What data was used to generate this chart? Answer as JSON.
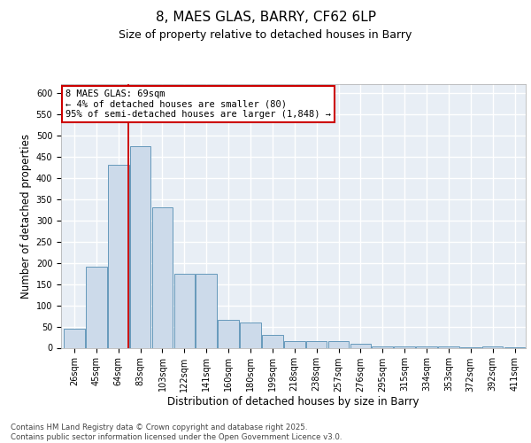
{
  "title_line1": "8, MAES GLAS, BARRY, CF62 6LP",
  "title_line2": "Size of property relative to detached houses in Barry",
  "xlabel": "Distribution of detached houses by size in Barry",
  "ylabel": "Number of detached properties",
  "categories": [
    "26sqm",
    "45sqm",
    "64sqm",
    "83sqm",
    "103sqm",
    "122sqm",
    "141sqm",
    "160sqm",
    "180sqm",
    "199sqm",
    "218sqm",
    "238sqm",
    "257sqm",
    "276sqm",
    "295sqm",
    "315sqm",
    "334sqm",
    "353sqm",
    "372sqm",
    "392sqm",
    "411sqm"
  ],
  "values": [
    45,
    190,
    430,
    475,
    330,
    175,
    175,
    65,
    60,
    30,
    15,
    15,
    15,
    10,
    3,
    3,
    3,
    3,
    2,
    3,
    2
  ],
  "bar_color": "#ccdaea",
  "bar_edge_color": "#6699bb",
  "vline_x": 2.45,
  "vline_color": "#cc0000",
  "annotation_line1": "8 MAES GLAS: 69sqm",
  "annotation_line2": "← 4% of detached houses are smaller (80)",
  "annotation_line3": "95% of semi-detached houses are larger (1,848) →",
  "annotation_box_edge_color": "#cc0000",
  "ylim_max": 620,
  "yticks": [
    0,
    50,
    100,
    150,
    200,
    250,
    300,
    350,
    400,
    450,
    500,
    550,
    600
  ],
  "background_color": "#e8eef5",
  "grid_color": "#ffffff",
  "footer_line1": "Contains HM Land Registry data © Crown copyright and database right 2025.",
  "footer_line2": "Contains public sector information licensed under the Open Government Licence v3.0.",
  "title1_fontsize": 11,
  "title2_fontsize": 9,
  "ylabel_fontsize": 8.5,
  "xlabel_fontsize": 8.5,
  "tick_fontsize": 7,
  "annot_fontsize": 7.5,
  "footer_fontsize": 6.2
}
